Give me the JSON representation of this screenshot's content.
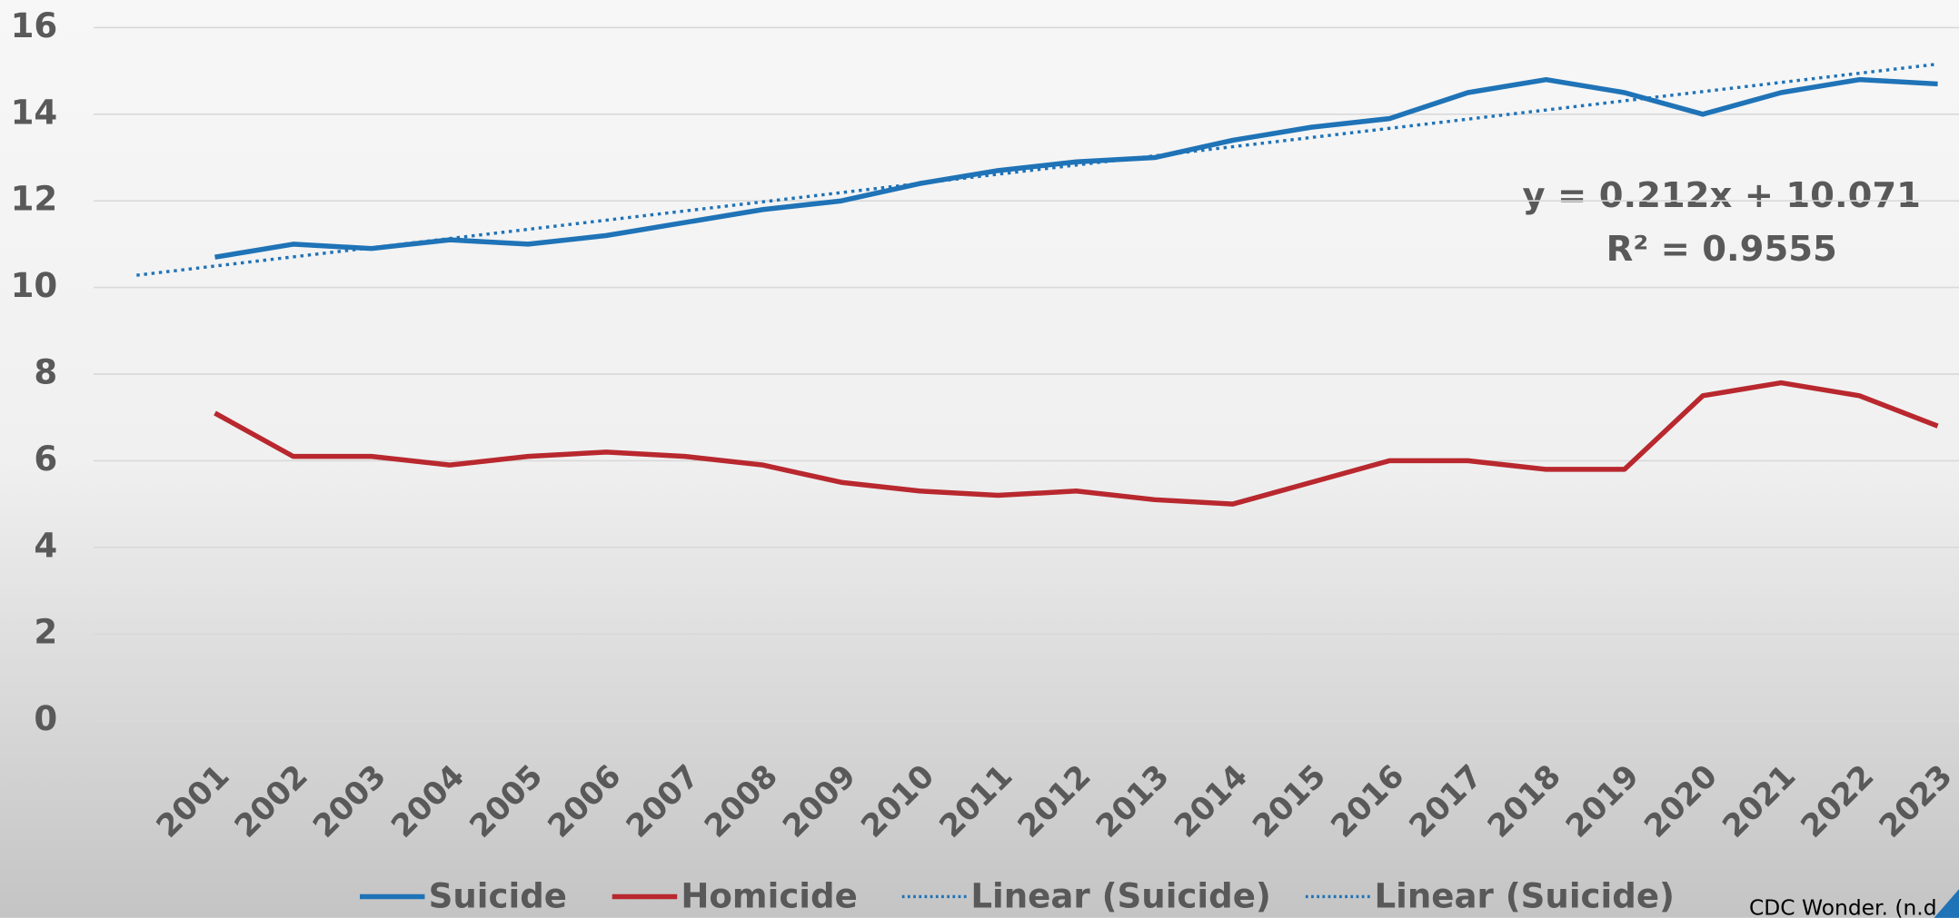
{
  "chart_data": {
    "type": "line",
    "categories": [
      "2001",
      "2002",
      "2003",
      "2004",
      "2005",
      "2006",
      "2007",
      "2008",
      "2009",
      "2010",
      "2011",
      "2012",
      "2013",
      "2014",
      "2015",
      "2016",
      "2017",
      "2018",
      "2019",
      "2020",
      "2021",
      "2022",
      "2023"
    ],
    "series": [
      {
        "name": "Suicide",
        "color": "#1f73b7",
        "values": [
          10.7,
          11.0,
          10.9,
          11.1,
          11.0,
          11.2,
          11.5,
          11.8,
          12.0,
          12.4,
          12.7,
          12.9,
          13.0,
          13.4,
          13.7,
          13.9,
          14.5,
          14.8,
          14.5,
          14.0,
          14.5,
          14.8,
          14.7
        ]
      },
      {
        "name": "Homicide",
        "color": "#b8282e",
        "values": [
          7.1,
          6.1,
          6.1,
          5.9,
          6.1,
          6.2,
          6.1,
          5.9,
          5.5,
          5.3,
          5.2,
          5.3,
          5.1,
          5.0,
          5.5,
          6.0,
          6.0,
          5.8,
          5.8,
          7.5,
          7.8,
          7.5,
          6.8
        ]
      }
    ],
    "trendline": {
      "slope": 0.212,
      "intercept": 10.071,
      "color": "#1f73b7",
      "equation": "y = 0.212x + 10.071",
      "r2": "R² = 0.9555"
    },
    "trend_legend": [
      "Linear (Suicide)",
      "Linear (Suicide)"
    ],
    "source": "CDC Wonder. (n.d",
    "ylim": [
      0,
      16
    ],
    "yticks": [
      0,
      2,
      4,
      6,
      8,
      10,
      12,
      14,
      16
    ],
    "grid": true
  }
}
